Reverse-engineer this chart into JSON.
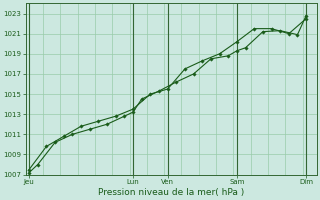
{
  "xlabel": "Pression niveau de la mer( hPa )",
  "bg_color": "#cce8e0",
  "grid_color": "#99ccaa",
  "line_color": "#1a5c1a",
  "marker_color": "#1a5c1a",
  "ylim": [
    1007,
    1024
  ],
  "yticks": [
    1007,
    1009,
    1011,
    1013,
    1015,
    1017,
    1019,
    1021,
    1023
  ],
  "day_labels": [
    "Jeu",
    "Lun",
    "Ven",
    "Sam",
    "Dim"
  ],
  "day_positions": [
    0.0,
    3.0,
    4.0,
    6.0,
    8.0
  ],
  "xmin": -0.1,
  "xmax": 8.3,
  "vline_color": "#336633",
  "vline_positions": [
    0.0,
    3.0,
    4.0,
    6.0,
    8.0
  ],
  "series1_x": [
    0.0,
    0.25,
    0.75,
    1.25,
    1.75,
    2.25,
    2.75,
    3.0,
    3.25,
    3.75,
    4.25,
    4.75,
    5.25,
    5.75,
    6.0,
    6.25,
    6.75,
    7.25,
    7.75,
    8.0
  ],
  "series1_y": [
    1007.2,
    1008.0,
    1010.2,
    1011.0,
    1011.5,
    1012.0,
    1012.8,
    1013.2,
    1014.5,
    1015.3,
    1016.2,
    1017.0,
    1018.5,
    1018.8,
    1019.3,
    1019.6,
    1021.2,
    1021.3,
    1020.9,
    1022.8
  ],
  "series2_x": [
    0.0,
    0.5,
    1.0,
    1.5,
    2.0,
    2.5,
    3.0,
    3.5,
    4.0,
    4.5,
    5.0,
    5.5,
    6.0,
    6.5,
    7.0,
    7.5,
    8.0
  ],
  "series2_y": [
    1007.5,
    1009.8,
    1010.8,
    1011.8,
    1012.3,
    1012.8,
    1013.5,
    1015.0,
    1015.5,
    1017.5,
    1018.3,
    1019.0,
    1020.2,
    1021.5,
    1021.5,
    1021.0,
    1022.5
  ],
  "label_fontsize": 5.0,
  "xlabel_fontsize": 6.5
}
